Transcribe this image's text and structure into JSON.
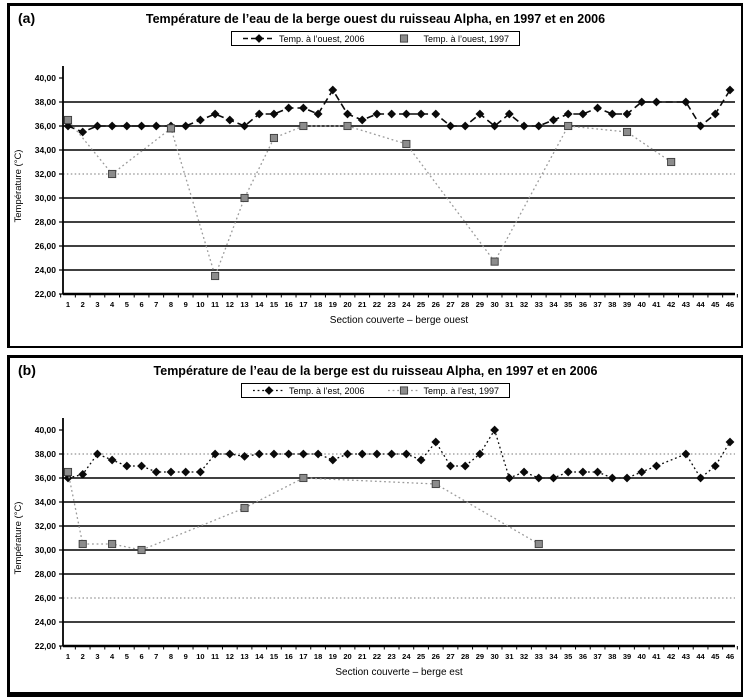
{
  "figure": {
    "background": "#ffffff"
  },
  "chart_data": [
    {
      "type": "line",
      "panel_label": "(a)",
      "title": "Température de l’eau de la berge ouest du ruisseau Alpha, en 1997 et en 2006",
      "xlabel": "Section couverte – berge ouest",
      "ylabel": "Température (°C)",
      "ylim": [
        22,
        40
      ],
      "ytick_values": [
        40,
        38,
        36,
        34,
        32,
        30,
        28,
        26,
        24,
        22
      ],
      "ytick_labels": [
        "40,00",
        "38,00",
        "36,00",
        "34,00",
        "32,00",
        "30,00",
        "28,00",
        "26,00",
        "24,00",
        "22,00"
      ],
      "dotted_gridlines": [
        32
      ],
      "grid": "horizontal",
      "legend_position": "top",
      "x": [
        1,
        2,
        3,
        4,
        5,
        6,
        7,
        8,
        9,
        10,
        11,
        12,
        13,
        14,
        15,
        16,
        17,
        18,
        19,
        20,
        21,
        22,
        23,
        24,
        25,
        26,
        27,
        28,
        29,
        30,
        31,
        32,
        33,
        34,
        35,
        36,
        37,
        38,
        39,
        40,
        41,
        42,
        43,
        44,
        45,
        46
      ],
      "series": [
        {
          "id": "temp-ouest-2006",
          "name": "Temp. à l’ouest, 2006",
          "marker": "diamond",
          "line": "dashed",
          "color": "#0a0a0a",
          "legend_sample": "line-marker",
          "values": [
            36,
            35.5,
            36,
            36,
            36,
            36,
            36,
            36,
            36,
            36.5,
            37,
            36.5,
            36,
            37,
            37,
            37.5,
            37.5,
            37,
            39,
            37,
            36.5,
            37,
            37,
            37,
            37,
            37,
            36,
            36,
            37,
            36,
            37,
            36,
            36,
            36.5,
            37,
            37,
            37.5,
            37,
            37,
            38,
            38,
            null,
            38,
            36,
            37,
            39
          ]
        },
        {
          "id": "temp-ouest-1997",
          "name": "Temp. à l’ouest, 1997",
          "marker": "square",
          "line": "dotted",
          "color": "#9a9a9a",
          "marker_color": "#8c8c8c",
          "legend_sample": "marker",
          "values": [
            36.5,
            null,
            null,
            32,
            null,
            null,
            null,
            35.8,
            null,
            null,
            23.5,
            null,
            30,
            null,
            35,
            null,
            36,
            null,
            null,
            36,
            null,
            null,
            null,
            34.5,
            null,
            null,
            null,
            null,
            null,
            24.7,
            null,
            null,
            null,
            null,
            36,
            null,
            null,
            null,
            35.5,
            null,
            null,
            33,
            null,
            null,
            null,
            null
          ]
        }
      ]
    },
    {
      "type": "line",
      "panel_label": "(b)",
      "title": "Température de l’eau de la berge est du ruisseau Alpha, en 1997 et en 2006",
      "xlabel": "Section couverte – berge est",
      "ylabel": "Température (°C)",
      "ylim": [
        22,
        40
      ],
      "ytick_values": [
        40,
        38,
        36,
        34,
        32,
        30,
        28,
        26,
        24,
        22
      ],
      "ytick_labels": [
        "40,00",
        "38,00",
        "36,00",
        "34,00",
        "32,00",
        "30,00",
        "28,00",
        "26,00",
        "24,00",
        "22,00"
      ],
      "dotted_gridlines": [
        38,
        26
      ],
      "grid": "horizontal",
      "legend_position": "top",
      "x": [
        1,
        2,
        3,
        4,
        5,
        6,
        7,
        8,
        9,
        10,
        11,
        12,
        13,
        14,
        15,
        16,
        17,
        18,
        19,
        20,
        21,
        22,
        23,
        24,
        25,
        26,
        27,
        28,
        29,
        30,
        31,
        32,
        33,
        34,
        35,
        36,
        37,
        38,
        39,
        40,
        41,
        42,
        43,
        44,
        45,
        46
      ],
      "series": [
        {
          "id": "temp-est-2006",
          "name": "Temp. à l’est, 2006",
          "marker": "diamond",
          "line": "dotted",
          "color": "#0a0a0a",
          "legend_sample": "line-marker",
          "values": [
            36,
            36.3,
            38,
            37.5,
            37,
            37,
            36.5,
            36.5,
            36.5,
            36.5,
            38,
            38,
            37.8,
            38,
            38,
            38,
            38,
            38,
            37.5,
            38,
            38,
            38,
            38,
            38,
            37.5,
            39,
            37,
            37,
            38,
            40,
            36,
            36.5,
            36,
            36,
            36.5,
            36.5,
            36.5,
            36,
            36,
            36.5,
            37,
            null,
            38,
            36,
            37,
            39
          ]
        },
        {
          "id": "temp-est-1997",
          "name": "Temp. à l’est, 1997",
          "marker": "square",
          "line": "dotted",
          "color": "#9a9a9a",
          "marker_color": "#8c8c8c",
          "legend_sample": "line-marker",
          "values": [
            36.5,
            30.5,
            null,
            30.5,
            null,
            30,
            null,
            null,
            null,
            null,
            null,
            null,
            33.5,
            null,
            null,
            null,
            36,
            null,
            null,
            null,
            null,
            null,
            null,
            null,
            null,
            35.5,
            null,
            null,
            null,
            null,
            null,
            null,
            30.5,
            null,
            null,
            null,
            null,
            null,
            null,
            null,
            null,
            null,
            null,
            null,
            null,
            null
          ]
        }
      ]
    }
  ]
}
